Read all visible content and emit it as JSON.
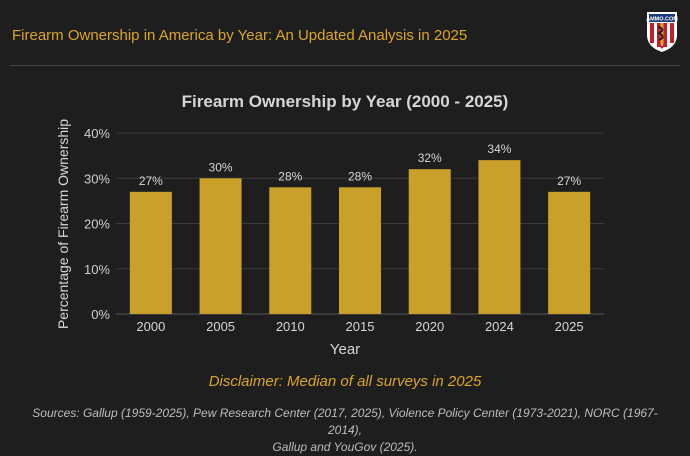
{
  "header": {
    "title": "Firearm Ownership in America by Year: An Updated Analysis in 2025",
    "logo_text": "AMMO.COM"
  },
  "chart_data": {
    "type": "bar",
    "title": "Firearm Ownership by Year (2000 - 2025)",
    "xlabel": "Year",
    "ylabel": "Percentage of Firearm Ownership",
    "categories": [
      "2000",
      "2005",
      "2010",
      "2015",
      "2020",
      "2024",
      "2025"
    ],
    "values": [
      27,
      30,
      28,
      28,
      32,
      34,
      27
    ],
    "data_labels": [
      "27%",
      "30%",
      "28%",
      "28%",
      "32%",
      "34%",
      "27%"
    ],
    "ylim": [
      0,
      40
    ],
    "yticks": [
      0,
      10,
      20,
      30,
      40
    ],
    "ytick_labels": [
      "0%",
      "10%",
      "20%",
      "30%",
      "40%"
    ],
    "grid": true,
    "bar_color": "#c9a02a",
    "background": "#1e1e1e"
  },
  "footer": {
    "disclaimer": "Disclaimer: Median of all surveys in 2025",
    "sources_line1": "Sources: Gallup (1959-2025), Pew Research Center (2017, 2025), Violence Policy Center (1973-2021), NORC (1967-2014),",
    "sources_line2": "Gallup and YouGov (2025)."
  }
}
